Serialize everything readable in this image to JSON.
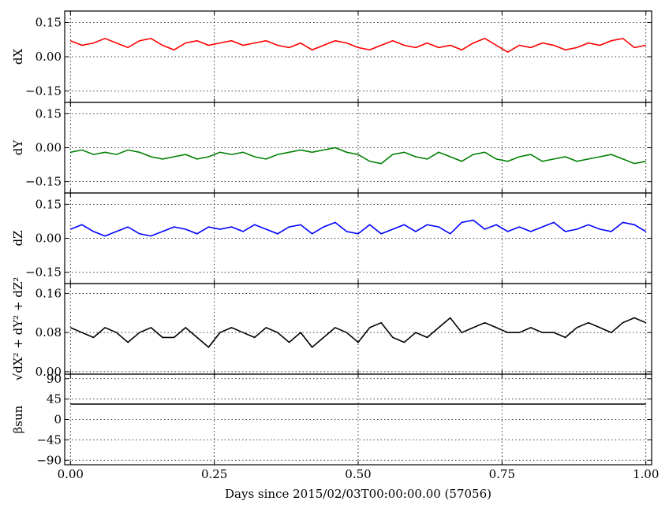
{
  "chart_data": {
    "type": "line",
    "xlabel": "Days since 2015/02/03T00:00:00.00 (57056)",
    "xlim": [
      -0.01,
      1.01
    ],
    "x_ticks": [
      0.0,
      0.25,
      0.5,
      0.75,
      1.0
    ],
    "x_tick_labels": [
      "0.00",
      "0.25",
      "0.50",
      "0.75",
      "1.00"
    ],
    "grid": true,
    "panels": [
      {
        "id": "dX",
        "ylabel": "dX",
        "color": "#ff0000",
        "ylim": [
          -0.2,
          0.2
        ],
        "y_ticks": [
          -0.15,
          0.0,
          0.15
        ],
        "y_tick_labels": [
          "−0.15",
          "0.00",
          "0.15"
        ],
        "series": [
          {
            "x": [
              0.0,
              0.02,
              0.04,
              0.06,
              0.08,
              0.1,
              0.12,
              0.14,
              0.16,
              0.18,
              0.2,
              0.22,
              0.24,
              0.26,
              0.28,
              0.3,
              0.32,
              0.34,
              0.36,
              0.38,
              0.4,
              0.42,
              0.44,
              0.46,
              0.48,
              0.5,
              0.52,
              0.54,
              0.56,
              0.58,
              0.6,
              0.62,
              0.64,
              0.66,
              0.68,
              0.7,
              0.72,
              0.74,
              0.76,
              0.78,
              0.8,
              0.82,
              0.84,
              0.86,
              0.88,
              0.9,
              0.92,
              0.94,
              0.96,
              0.98,
              1.0
            ],
            "values": [
              0.07,
              0.05,
              0.06,
              0.08,
              0.06,
              0.04,
              0.07,
              0.08,
              0.05,
              0.03,
              0.06,
              0.07,
              0.05,
              0.06,
              0.07,
              0.05,
              0.06,
              0.07,
              0.05,
              0.04,
              0.06,
              0.03,
              0.05,
              0.07,
              0.06,
              0.04,
              0.03,
              0.05,
              0.07,
              0.05,
              0.04,
              0.06,
              0.04,
              0.05,
              0.03,
              0.06,
              0.08,
              0.05,
              0.02,
              0.05,
              0.04,
              0.06,
              0.05,
              0.03,
              0.04,
              0.06,
              0.05,
              0.07,
              0.08,
              0.04,
              0.05
            ]
          }
        ]
      },
      {
        "id": "dY",
        "ylabel": "dY",
        "color": "#008000",
        "ylim": [
          -0.2,
          0.2
        ],
        "y_ticks": [
          -0.15,
          0.0,
          0.15
        ],
        "y_tick_labels": [
          "−0.15",
          "0.00",
          "0.15"
        ],
        "series": [
          {
            "x": [
              0.0,
              0.02,
              0.04,
              0.06,
              0.08,
              0.1,
              0.12,
              0.14,
              0.16,
              0.18,
              0.2,
              0.22,
              0.24,
              0.26,
              0.28,
              0.3,
              0.32,
              0.34,
              0.36,
              0.38,
              0.4,
              0.42,
              0.44,
              0.46,
              0.48,
              0.5,
              0.52,
              0.54,
              0.56,
              0.58,
              0.6,
              0.62,
              0.64,
              0.66,
              0.68,
              0.7,
              0.72,
              0.74,
              0.76,
              0.78,
              0.8,
              0.82,
              0.84,
              0.86,
              0.88,
              0.9,
              0.92,
              0.94,
              0.96,
              0.98,
              1.0
            ],
            "values": [
              -0.02,
              -0.01,
              -0.03,
              -0.02,
              -0.03,
              -0.01,
              -0.02,
              -0.04,
              -0.05,
              -0.04,
              -0.03,
              -0.05,
              -0.04,
              -0.02,
              -0.03,
              -0.02,
              -0.04,
              -0.05,
              -0.03,
              -0.02,
              -0.01,
              -0.02,
              -0.01,
              0.0,
              -0.02,
              -0.03,
              -0.06,
              -0.07,
              -0.03,
              -0.02,
              -0.04,
              -0.05,
              -0.02,
              -0.04,
              -0.06,
              -0.03,
              -0.02,
              -0.05,
              -0.06,
              -0.04,
              -0.03,
              -0.06,
              -0.05,
              -0.04,
              -0.06,
              -0.05,
              -0.04,
              -0.03,
              -0.05,
              -0.07,
              -0.06
            ]
          }
        ]
      },
      {
        "id": "dZ",
        "ylabel": "dZ",
        "color": "#0000ff",
        "ylim": [
          -0.2,
          0.2
        ],
        "y_ticks": [
          -0.15,
          0.0,
          0.15
        ],
        "y_tick_labels": [
          "−0.15",
          "0.00",
          "0.15"
        ],
        "series": [
          {
            "x": [
              0.0,
              0.02,
              0.04,
              0.06,
              0.08,
              0.1,
              0.12,
              0.14,
              0.16,
              0.18,
              0.2,
              0.22,
              0.24,
              0.26,
              0.28,
              0.3,
              0.32,
              0.34,
              0.36,
              0.38,
              0.4,
              0.42,
              0.44,
              0.46,
              0.48,
              0.5,
              0.52,
              0.54,
              0.56,
              0.58,
              0.6,
              0.62,
              0.64,
              0.66,
              0.68,
              0.7,
              0.72,
              0.74,
              0.76,
              0.78,
              0.8,
              0.82,
              0.84,
              0.86,
              0.88,
              0.9,
              0.92,
              0.94,
              0.96,
              0.98,
              1.0
            ],
            "values": [
              0.04,
              0.06,
              0.03,
              0.01,
              0.03,
              0.05,
              0.02,
              0.01,
              0.03,
              0.05,
              0.04,
              0.02,
              0.05,
              0.04,
              0.05,
              0.03,
              0.06,
              0.04,
              0.02,
              0.05,
              0.06,
              0.02,
              0.05,
              0.07,
              0.03,
              0.02,
              0.06,
              0.02,
              0.04,
              0.06,
              0.03,
              0.06,
              0.05,
              0.02,
              0.07,
              0.08,
              0.04,
              0.06,
              0.03,
              0.05,
              0.03,
              0.05,
              0.07,
              0.03,
              0.04,
              0.06,
              0.04,
              0.03,
              0.07,
              0.06,
              0.03
            ]
          }
        ]
      },
      {
        "id": "dR",
        "ylabel": "√dX² + dY² + dZ²",
        "color": "#000000",
        "ylim": [
          -0.005,
          0.18
        ],
        "y_ticks": [
          0.0,
          0.08,
          0.16
        ],
        "y_tick_labels": [
          "0.00",
          "0.08",
          "0.16"
        ],
        "series": [
          {
            "x": [
              0.0,
              0.02,
              0.04,
              0.06,
              0.08,
              0.1,
              0.12,
              0.14,
              0.16,
              0.18,
              0.2,
              0.22,
              0.24,
              0.26,
              0.28,
              0.3,
              0.32,
              0.34,
              0.36,
              0.38,
              0.4,
              0.42,
              0.44,
              0.46,
              0.48,
              0.5,
              0.52,
              0.54,
              0.56,
              0.58,
              0.6,
              0.62,
              0.64,
              0.66,
              0.68,
              0.7,
              0.72,
              0.74,
              0.76,
              0.78,
              0.8,
              0.82,
              0.84,
              0.86,
              0.88,
              0.9,
              0.92,
              0.94,
              0.96,
              0.98,
              1.0
            ],
            "values": [
              0.09,
              0.08,
              0.07,
              0.09,
              0.08,
              0.06,
              0.08,
              0.09,
              0.07,
              0.07,
              0.09,
              0.07,
              0.05,
              0.08,
              0.09,
              0.08,
              0.07,
              0.09,
              0.08,
              0.06,
              0.08,
              0.05,
              0.07,
              0.09,
              0.08,
              0.06,
              0.09,
              0.1,
              0.07,
              0.06,
              0.08,
              0.07,
              0.09,
              0.11,
              0.08,
              0.09,
              0.1,
              0.09,
              0.08,
              0.08,
              0.09,
              0.08,
              0.08,
              0.07,
              0.09,
              0.1,
              0.09,
              0.08,
              0.1,
              0.11,
              0.1
            ]
          }
        ]
      },
      {
        "id": "beta",
        "ylabel": "βsun",
        "color": "#000000",
        "ylim": [
          -100,
          100
        ],
        "y_ticks": [
          -90,
          -45,
          0,
          45,
          90
        ],
        "y_tick_labels": [
          "−90",
          "−45",
          "0",
          "45",
          "90"
        ],
        "series": [
          {
            "x": [
              0.0,
              0.05,
              0.1,
              0.15,
              0.2,
              0.25,
              0.3,
              0.35,
              0.4,
              0.45,
              0.5,
              0.55,
              0.6,
              0.65,
              0.7,
              0.75,
              0.8,
              0.85,
              0.9,
              0.95,
              1.0
            ],
            "values": [
              34,
              34,
              34,
              34,
              34,
              34,
              34,
              34,
              34,
              34,
              34,
              34,
              34,
              34,
              34,
              34,
              34,
              34,
              34,
              34,
              34
            ]
          }
        ]
      }
    ]
  }
}
